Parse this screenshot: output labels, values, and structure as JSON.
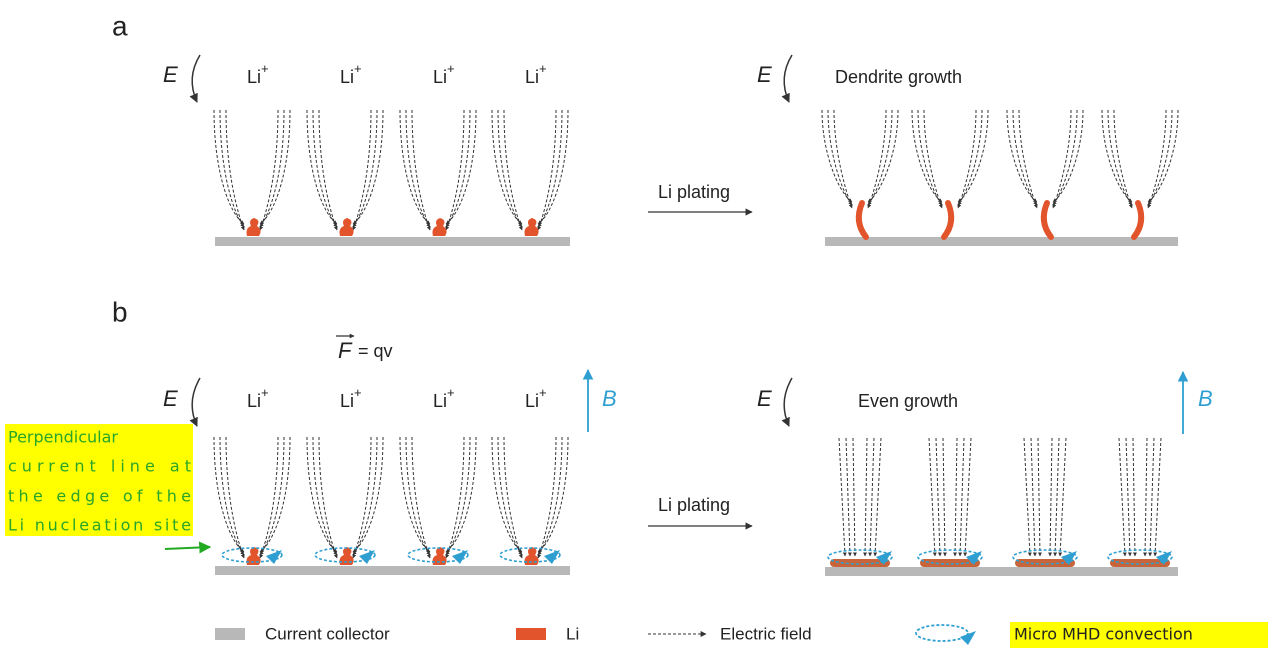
{
  "panel_a": {
    "label": "a",
    "field_symbol": "E",
    "ions": [
      {
        "symbol": "Li",
        "charge": "+"
      },
      {
        "symbol": "Li",
        "charge": "+"
      },
      {
        "symbol": "Li",
        "charge": "+"
      },
      {
        "symbol": "Li",
        "charge": "+"
      }
    ],
    "process": "Li plating",
    "result_field_symbol": "E",
    "result": "Dendrite growth"
  },
  "panel_b": {
    "label": "b",
    "force": {
      "symbol": "F",
      "equation": "= qv"
    },
    "field_symbol": "E",
    "ions": [
      {
        "symbol": "Li",
        "charge": "+"
      },
      {
        "symbol": "Li",
        "charge": "+"
      },
      {
        "symbol": "Li",
        "charge": "+"
      },
      {
        "symbol": "Li",
        "charge": "+"
      }
    ],
    "magnetic_symbol": "B",
    "process": "Li plating",
    "result_field_symbol": "E",
    "result": "Even growth",
    "result_magnetic_symbol": "B",
    "annotation": [
      "Perpendicular",
      "current line at",
      "the edge of the",
      "Li nucleation site"
    ]
  },
  "legend": [
    {
      "label": "Current collector"
    },
    {
      "label": "Li"
    },
    {
      "label": "Electric field"
    },
    {
      "label": "Micro MHD convection"
    }
  ]
}
